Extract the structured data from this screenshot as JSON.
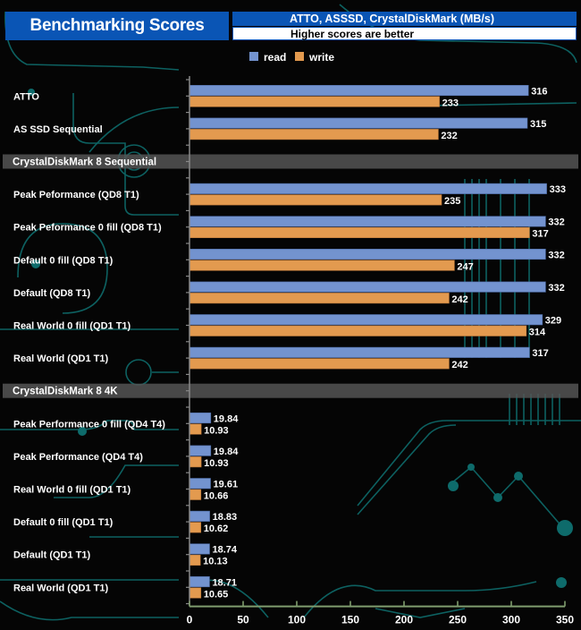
{
  "header": {
    "title": "Benchmarking Scores",
    "subtitle": "ATTO, ASSSD, CrystalDiskMark (MB/s)",
    "note": "Higher scores are better"
  },
  "colors": {
    "read": "#7393cf",
    "write": "#e39a4f",
    "header_blue": "#0a55b5",
    "section_band": "#555555",
    "axis": "#7f9c6e",
    "circuit": "#0e6b6b"
  },
  "chart_data": {
    "type": "bar",
    "orientation": "horizontal",
    "title": "Benchmarking Scores",
    "subtitle": "ATTO, ASSSD, CrystalDiskMark (MB/s)",
    "note": "Higher scores are better",
    "xlabel": "",
    "ylabel": "",
    "xlim": [
      0,
      350
    ],
    "xticks": [
      0,
      50,
      100,
      150,
      200,
      250,
      300,
      350
    ],
    "grid": false,
    "legend": {
      "position": "top-center",
      "entries": [
        "read",
        "write"
      ]
    },
    "series": [
      {
        "name": "read",
        "values": [
          316,
          315,
          null,
          333,
          332,
          332,
          332,
          329,
          317,
          null,
          19.84,
          19.84,
          19.61,
          18.83,
          18.74,
          18.71
        ]
      },
      {
        "name": "write",
        "values": [
          233,
          232,
          null,
          235,
          317,
          247,
          242,
          314,
          242,
          null,
          10.93,
          10.93,
          10.66,
          10.62,
          10.13,
          10.65
        ]
      }
    ],
    "categories": [
      "ATTO",
      "AS SSD Sequential",
      "CrystalDiskMark 8 Sequential",
      "Peak Peformance (QD8 T1)",
      "Peak Peformance 0 fill (QD8 T1)",
      "Default 0 fill (QD8 T1)",
      "Default (QD8 T1)",
      "Real World 0 fill (QD1 T1)",
      "Real World (QD1 T1)",
      "CrystalDiskMark 8 4K",
      "Peak Performance 0 fill (QD4 T4)",
      "Peak Performance (QD4 T4)",
      "Real World 0 fill  (QD1 T1)",
      "Default 0 fill (QD1 T1)",
      "Default (QD1 T1)",
      "Real World  (QD1 T1)"
    ],
    "section_headers": [
      "CrystalDiskMark 8 Sequential",
      "CrystalDiskMark 8 4K"
    ],
    "value_labels": {
      "read": [
        "316",
        "315",
        "",
        "333",
        "332",
        "332",
        "332",
        "329",
        "317",
        "",
        "19.84",
        "19.84",
        "19.61",
        "18.83",
        "18.74",
        "18.71"
      ],
      "write": [
        "233",
        "232",
        "",
        "235",
        "317",
        "247",
        "242",
        "314",
        "242",
        "",
        "10.93",
        "10.93",
        "10.66",
        "10.62",
        "10.13",
        "10.65"
      ]
    }
  }
}
